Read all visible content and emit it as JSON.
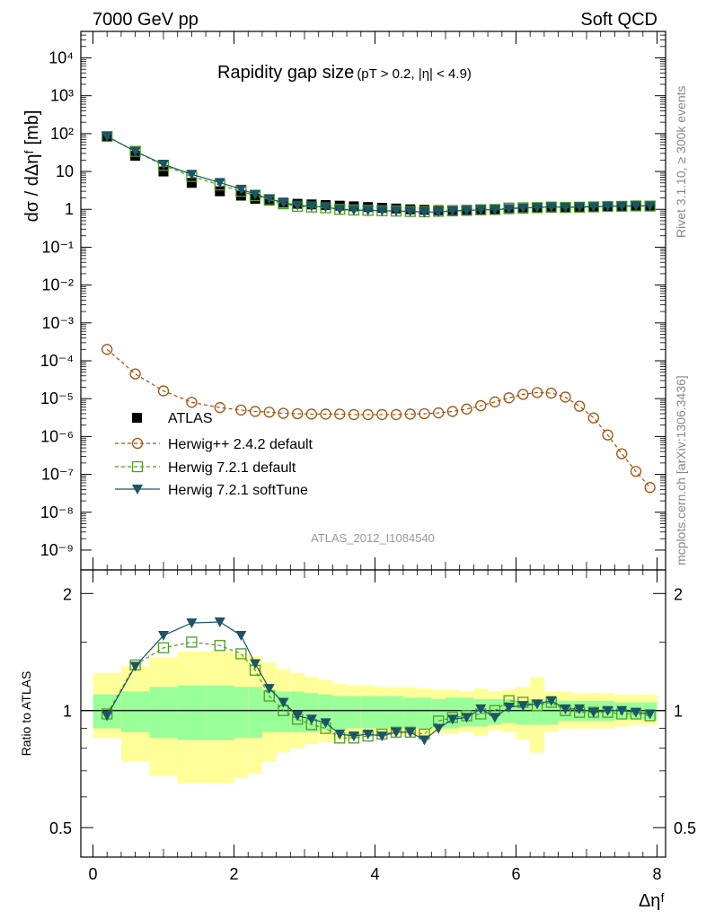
{
  "header": {
    "left": "7000 GeV pp",
    "right": "Soft QCD"
  },
  "title": {
    "main": "Rapidity gap size",
    "cut": "(pT > 0.2, |η| < 4.9)"
  },
  "side_labels": {
    "rivet": "Rivet 3.1.10, ≥ 300k events",
    "mcplots": "mcplots.cern.ch [arXiv:1306.3436]"
  },
  "analysis_id": "ATLAS_2012_I1084540",
  "legend": [
    {
      "key": "atlas",
      "label": "ATLAS"
    },
    {
      "key": "hpp",
      "label": "Herwig++ 2.4.2 default"
    },
    {
      "key": "h721",
      "label": "Herwig 7.2.1 default"
    },
    {
      "key": "soft",
      "label": "Herwig 7.2.1 softTune"
    }
  ],
  "colors": {
    "hpp": "#a0520e",
    "h721": "#4f9b25",
    "soft": "#1c5566",
    "band_inner": "#99ff99",
    "band_outer": "#ffff99"
  },
  "chart_data": [
    {
      "type": "scatter",
      "panel": "main",
      "ylabel": "dσ / dΔηᶠ [mb]",
      "yscale": "log",
      "ylim": [
        3e-10,
        50000.0
      ],
      "xlim": [
        -0.1,
        8.1
      ],
      "y_tick_labels": [
        "10⁻⁹",
        "10⁻⁸",
        "10⁻⁷",
        "10⁻⁶",
        "10⁻⁵",
        "10⁻⁴",
        "10⁻³",
        "10⁻²",
        "10⁻¹",
        "1",
        "10",
        "10²",
        "10³",
        "10⁴"
      ],
      "x": [
        0.2,
        0.6,
        1.0,
        1.4,
        1.8,
        2.1,
        2.3,
        2.5,
        2.7,
        2.9,
        3.1,
        3.3,
        3.5,
        3.7,
        3.9,
        4.1,
        4.3,
        4.5,
        4.7,
        4.9,
        5.1,
        5.3,
        5.5,
        5.7,
        5.9,
        6.1,
        6.3,
        6.5,
        6.7,
        6.9,
        7.1,
        7.3,
        7.5,
        7.7,
        7.9
      ],
      "series": [
        {
          "name": "ATLAS",
          "values": [
            86,
            26,
            10,
            5,
            3,
            2.3,
            1.9,
            1.7,
            1.5,
            1.4,
            1.35,
            1.3,
            1.25,
            1.2,
            1.15,
            1.1,
            1.05,
            1.0,
            0.97,
            0.95,
            0.95,
            0.97,
            1.0,
            1.0,
            1.02,
            1.05,
            1.08,
            1.1,
            1.12,
            1.15,
            1.18,
            1.2,
            1.22,
            1.25,
            1.25
          ]
        },
        {
          "name": "Herwig++ 2.4.2 default",
          "values": [
            0.0002,
            4.5e-05,
            1.6e-05,
            8e-06,
            5.8e-06,
            5e-06,
            4.6e-06,
            4.4e-06,
            4.1e-06,
            4e-06,
            3.9e-06,
            3.9e-06,
            3.9e-06,
            3.8e-06,
            3.8e-06,
            3.8e-06,
            3.8e-06,
            3.9e-06,
            4e-06,
            4.2e-06,
            4.6e-06,
            5.3e-06,
            6.5e-06,
            8.2e-06,
            1.05e-05,
            1.3e-05,
            1.45e-05,
            1.4e-05,
            1.1e-05,
            6.3e-06,
            3.1e-06,
            1.1e-06,
            3.5e-07,
            1.2e-07,
            4.5e-08
          ]
        },
        {
          "name": "Herwig 7.2.1 default",
          "values": [
            84,
            34,
            14.5,
            7.4,
            4.4,
            3.0,
            2.3,
            1.8,
            1.4,
            1.2,
            1.15,
            1.1,
            1.0,
            0.96,
            0.94,
            0.92,
            0.9,
            0.88,
            0.86,
            0.89,
            0.91,
            0.94,
            0.97,
            0.99,
            1.08,
            1.1,
            1.11,
            1.15,
            1.12,
            1.14,
            1.16,
            1.19,
            1.2,
            1.23,
            1.22
          ]
        },
        {
          "name": "Herwig 7.2.1 softTune",
          "values": [
            84,
            34,
            15.5,
            8.4,
            5.1,
            3.4,
            2.5,
            1.9,
            1.5,
            1.28,
            1.2,
            1.15,
            1.0,
            0.96,
            0.94,
            0.92,
            0.9,
            0.88,
            0.84,
            0.86,
            0.9,
            0.93,
            0.98,
            0.97,
            1.04,
            1.08,
            1.12,
            1.16,
            1.13,
            1.16,
            1.17,
            1.2,
            1.22,
            1.24,
            1.23
          ]
        }
      ]
    },
    {
      "type": "scatter",
      "panel": "ratio",
      "ylabel": "Ratio to ATLAS",
      "xlabel": "Δηᶠ",
      "ylim": [
        0.42,
        2.3
      ],
      "xlim": [
        -0.1,
        8.1
      ],
      "y_ticks": [
        0.5,
        1,
        2
      ],
      "x_ticks": [
        0,
        2,
        4,
        6,
        8
      ],
      "y_tick_labels": [
        "0.5",
        "1",
        "2"
      ],
      "x_tick_labels": [
        "0",
        "2",
        "4",
        "6",
        "8"
      ],
      "x": [
        0.2,
        0.6,
        1.0,
        1.4,
        1.8,
        2.1,
        2.3,
        2.5,
        2.7,
        2.9,
        3.1,
        3.3,
        3.5,
        3.7,
        3.9,
        4.1,
        4.3,
        4.5,
        4.7,
        4.9,
        5.1,
        5.3,
        5.5,
        5.7,
        5.9,
        6.1,
        6.3,
        6.5,
        6.7,
        6.9,
        7.1,
        7.3,
        7.5,
        7.7,
        7.9
      ],
      "x_low": [
        0.0,
        0.4,
        0.8,
        1.2,
        1.6,
        2.0,
        2.2,
        2.4,
        2.6,
        2.8,
        3.0,
        3.2,
        3.4,
        3.6,
        3.8,
        4.0,
        4.2,
        4.4,
        4.6,
        4.8,
        5.0,
        5.2,
        5.4,
        5.6,
        5.8,
        6.0,
        6.2,
        6.4,
        6.6,
        6.8,
        7.0,
        7.2,
        7.4,
        7.6,
        7.8
      ],
      "x_high": [
        0.4,
        0.8,
        1.2,
        1.6,
        2.0,
        2.2,
        2.4,
        2.6,
        2.8,
        3.0,
        3.2,
        3.4,
        3.6,
        3.8,
        4.0,
        4.2,
        4.4,
        4.6,
        4.8,
        5.0,
        5.2,
        5.4,
        5.6,
        5.8,
        6.0,
        6.2,
        6.4,
        6.6,
        6.8,
        7.0,
        7.2,
        7.4,
        7.6,
        7.8,
        8.0
      ],
      "band_inner_low": [
        0.9,
        0.88,
        0.85,
        0.84,
        0.84,
        0.85,
        0.85,
        0.88,
        0.88,
        0.88,
        0.88,
        0.89,
        0.89,
        0.9,
        0.9,
        0.9,
        0.9,
        0.9,
        0.9,
        0.9,
        0.9,
        0.91,
        0.91,
        0.92,
        0.93,
        0.92,
        0.92,
        0.92,
        0.94,
        0.94,
        0.94,
        0.94,
        0.95,
        0.95,
        0.95
      ],
      "band_inner_high": [
        1.1,
        1.12,
        1.15,
        1.16,
        1.16,
        1.15,
        1.15,
        1.13,
        1.12,
        1.12,
        1.11,
        1.1,
        1.09,
        1.09,
        1.09,
        1.09,
        1.09,
        1.08,
        1.08,
        1.07,
        1.08,
        1.08,
        1.07,
        1.07,
        1.07,
        1.06,
        1.07,
        1.07,
        1.06,
        1.06,
        1.06,
        1.06,
        1.05,
        1.05,
        1.05
      ],
      "band_outer_low": [
        0.85,
        0.74,
        0.68,
        0.65,
        0.65,
        0.67,
        0.69,
        0.74,
        0.78,
        0.8,
        0.82,
        0.83,
        0.84,
        0.85,
        0.86,
        0.87,
        0.86,
        0.86,
        0.86,
        0.87,
        0.87,
        0.88,
        0.86,
        0.89,
        0.88,
        0.84,
        0.78,
        0.88,
        0.9,
        0.9,
        0.9,
        0.9,
        0.91,
        0.92,
        0.92
      ],
      "band_outer_high": [
        1.25,
        1.3,
        1.37,
        1.42,
        1.42,
        1.4,
        1.38,
        1.33,
        1.28,
        1.25,
        1.22,
        1.2,
        1.17,
        1.16,
        1.16,
        1.15,
        1.15,
        1.15,
        1.14,
        1.13,
        1.13,
        1.12,
        1.14,
        1.12,
        1.13,
        1.15,
        1.22,
        1.12,
        1.12,
        1.11,
        1.11,
        1.11,
        1.1,
        1.1,
        1.1
      ],
      "series": [
        {
          "name": "Herwig 7.2.1 default",
          "values": [
            0.98,
            1.31,
            1.45,
            1.5,
            1.47,
            1.4,
            1.27,
            1.09,
            1.0,
            0.95,
            0.92,
            0.9,
            0.85,
            0.85,
            0.86,
            0.87,
            0.88,
            0.88,
            0.87,
            0.94,
            0.96,
            0.97,
            0.98,
            1.0,
            1.06,
            1.05,
            1.03,
            1.05,
            1.0,
            0.99,
            0.99,
            0.99,
            0.98,
            0.98,
            0.97
          ]
        },
        {
          "name": "Herwig 7.2.1 softTune",
          "values": [
            0.97,
            1.3,
            1.56,
            1.68,
            1.69,
            1.56,
            1.32,
            1.14,
            1.05,
            0.97,
            0.95,
            0.93,
            0.87,
            0.86,
            0.87,
            0.86,
            0.88,
            0.88,
            0.84,
            0.9,
            0.95,
            0.96,
            1.01,
            0.96,
            1.02,
            1.03,
            1.04,
            1.06,
            1.01,
            1.01,
            0.99,
            1.0,
            1.0,
            0.99,
            0.98
          ]
        }
      ]
    }
  ]
}
